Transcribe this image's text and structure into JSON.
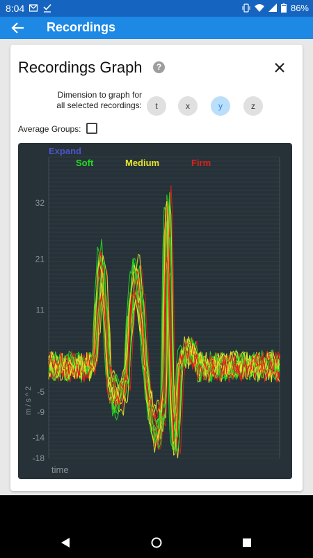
{
  "status_bar": {
    "time": "8:04",
    "battery": "86%",
    "left_icons": [
      "gmail-icon",
      "check-download-icon"
    ],
    "right_icons": [
      "vibrate-icon",
      "wifi-icon",
      "signal-icon",
      "battery-icon"
    ]
  },
  "app_bar": {
    "title": "Recordings",
    "back_icon": "arrow-back-icon",
    "color": "#1e88e5"
  },
  "dialog": {
    "title": "Recordings Graph",
    "help_icon": "help-icon",
    "help_glyph": "?",
    "close_icon": "close-icon",
    "dimension_label_line1": "Dimension to graph for",
    "dimension_label_line2": "all selected recordings:",
    "dimensions": [
      {
        "label": "t",
        "selected": false
      },
      {
        "label": "x",
        "selected": false
      },
      {
        "label": "y",
        "selected": true
      },
      {
        "label": "z",
        "selected": false
      }
    ],
    "average_groups_label": "Average Groups:",
    "average_groups_checked": false
  },
  "chart_data": {
    "type": "line",
    "expand_label": "Expand",
    "legend": [
      {
        "name": "Soft",
        "color": "#22dd22"
      },
      {
        "name": "Medium",
        "color": "#e6e62a"
      },
      {
        "name": "Firm",
        "color": "#e0201a"
      }
    ],
    "xlabel": "time",
    "ylabel": "m / s ^ 2",
    "ylim": [
      -18,
      41
    ],
    "yticks": [
      32,
      21,
      11,
      -5,
      -9,
      -14,
      -18
    ],
    "background": "#263238",
    "grid": true,
    "series_count": 18
  },
  "nav_bar": {
    "back_icon": "nav-back-icon",
    "home_icon": "nav-home-icon",
    "recents_icon": "nav-recents-icon"
  }
}
